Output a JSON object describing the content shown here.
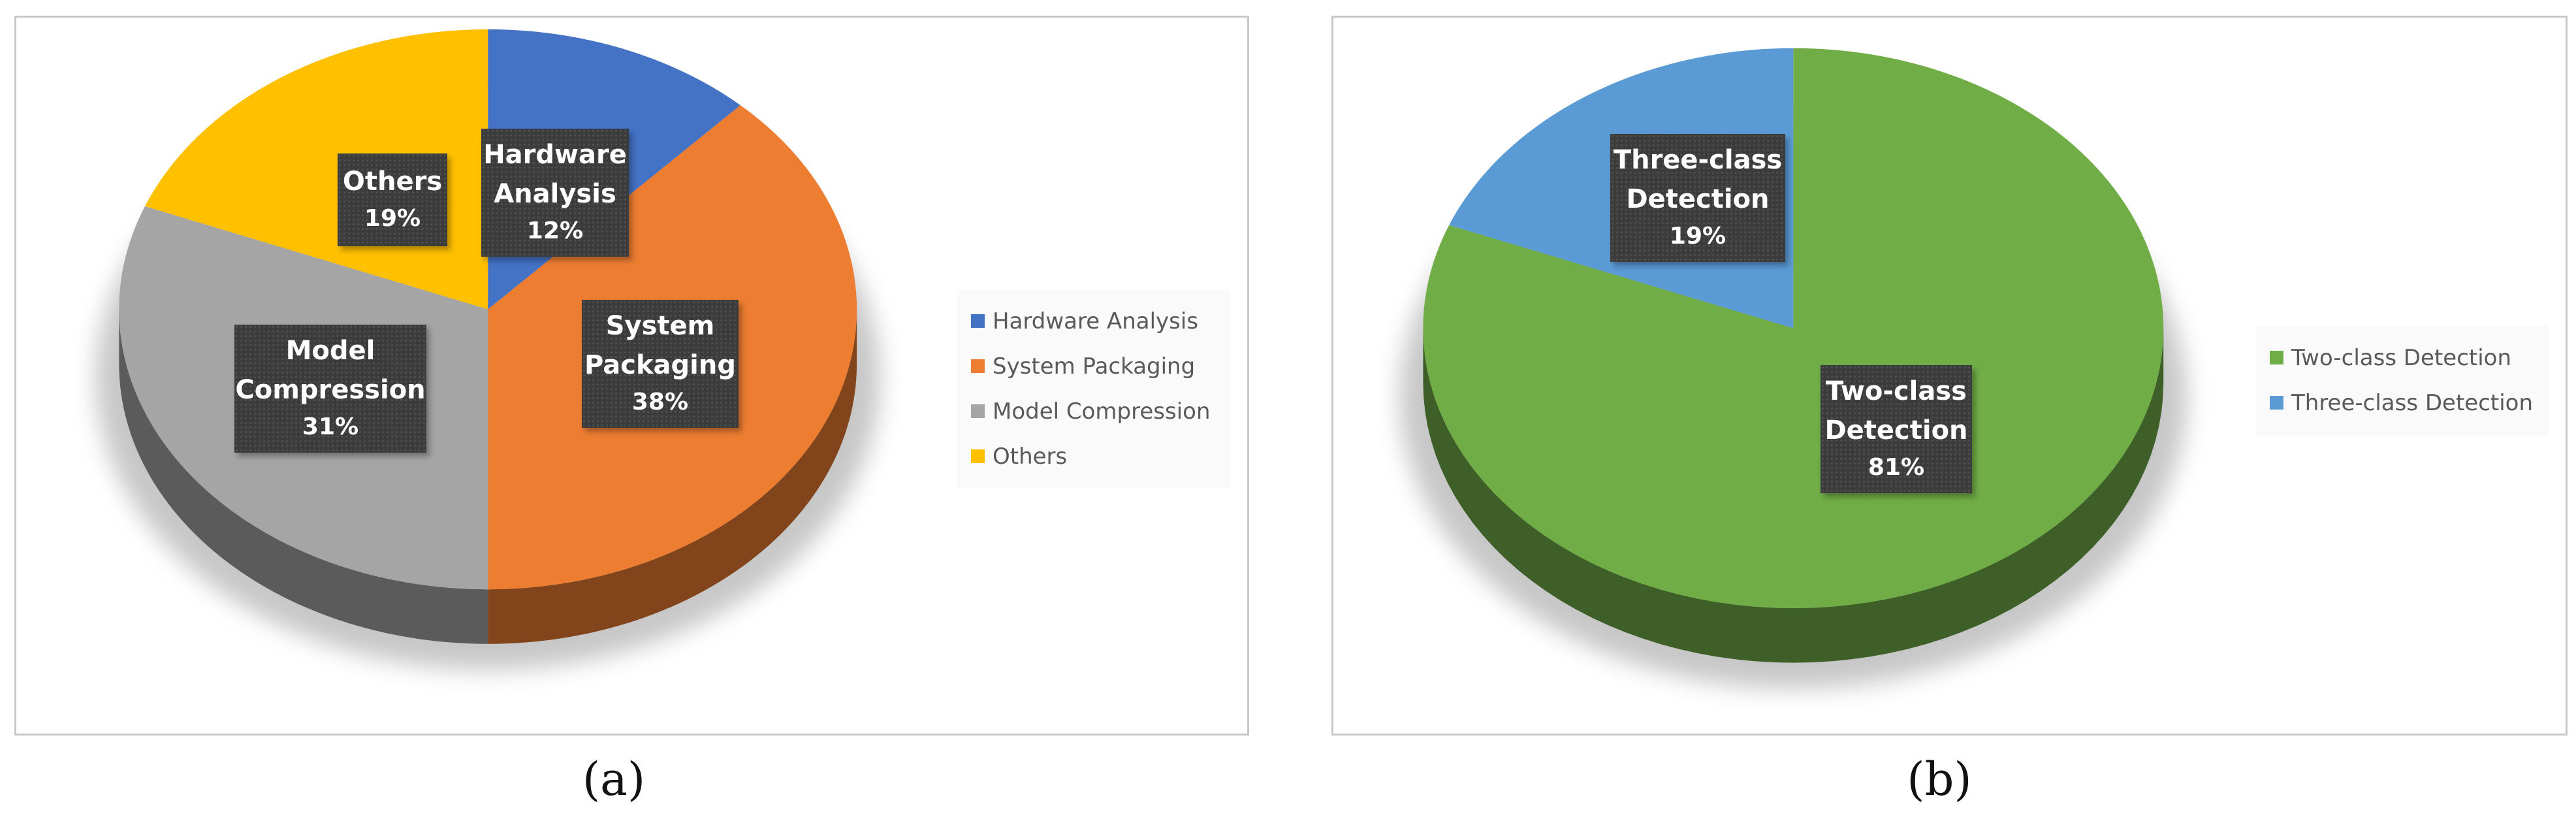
{
  "figure": {
    "captions": [
      "(a)",
      "(b)"
    ]
  },
  "chart_data": [
    {
      "type": "pie",
      "style": "3d",
      "slices": [
        {
          "label": "Hardware Analysis",
          "label_lines": [
            "Hardware",
            "Analysis"
          ],
          "value": 12,
          "display": "12%",
          "color": "#4472c4"
        },
        {
          "label": "System Packaging",
          "label_lines": [
            "System",
            "Packaging"
          ],
          "value": 38,
          "display": "38%",
          "color": "#ed7d31"
        },
        {
          "label": "Model Compression",
          "label_lines": [
            "Model",
            "Compression"
          ],
          "value": 31,
          "display": "31%",
          "color": "#a5a5a5"
        },
        {
          "label": "Others",
          "label_lines": [
            "Others"
          ],
          "value": 19,
          "display": "19%",
          "color": "#ffc000"
        }
      ],
      "legend": {
        "placement": "right",
        "entries": [
          "Hardware Analysis",
          "System Packaging",
          "Model Compression",
          "Others"
        ]
      }
    },
    {
      "type": "pie",
      "style": "3d",
      "slices": [
        {
          "label": "Two-class Detection",
          "label_lines": [
            "Two-class",
            "Detection"
          ],
          "value": 81,
          "display": "81%",
          "color": "#70ad47"
        },
        {
          "label": "Three-class Detection",
          "label_lines": [
            "Three-class",
            "Detection"
          ],
          "value": 19,
          "display": "19%",
          "color": "#5b9bd5"
        }
      ],
      "legend": {
        "placement": "right",
        "entries": [
          "Two-class Detection",
          "Three-class Detection"
        ]
      }
    }
  ]
}
